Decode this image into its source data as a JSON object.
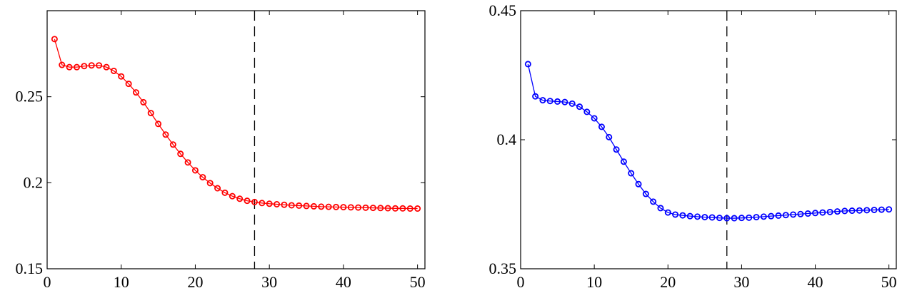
{
  "chart_data": [
    {
      "type": "line",
      "xlim": [
        0,
        51
      ],
      "ylim": [
        0.15,
        0.3
      ],
      "xticks": [
        0,
        10,
        20,
        30,
        40,
        50
      ],
      "xtick_labels": [
        "0",
        "10",
        "20",
        "30",
        "40",
        "50"
      ],
      "yticks": [
        0.15,
        0.2,
        0.25
      ],
      "ytick_labels": [
        "0.15",
        "0.2",
        "0.25"
      ],
      "grid": false,
      "vline_x": 28,
      "series": [
        {
          "color": "#ff0000",
          "marker": "circle",
          "x": [
            1,
            2,
            3,
            4,
            5,
            6,
            7,
            8,
            9,
            10,
            11,
            12,
            13,
            14,
            15,
            16,
            17,
            18,
            19,
            20,
            21,
            22,
            23,
            24,
            25,
            26,
            27,
            28,
            29,
            30,
            31,
            32,
            33,
            34,
            35,
            36,
            37,
            38,
            39,
            40,
            41,
            42,
            43,
            44,
            45,
            46,
            47,
            48,
            49,
            50
          ],
          "values": [
            0.2835,
            0.2685,
            0.2672,
            0.2672,
            0.2678,
            0.2682,
            0.2682,
            0.2672,
            0.265,
            0.2618,
            0.2575,
            0.2525,
            0.2468,
            0.2405,
            0.2342,
            0.228,
            0.2222,
            0.2168,
            0.2118,
            0.2072,
            0.2032,
            0.1998,
            0.1968,
            0.1942,
            0.1922,
            0.1907,
            0.1895,
            0.1888,
            0.1882,
            0.1878,
            0.1875,
            0.1872,
            0.1869,
            0.1867,
            0.1865,
            0.1863,
            0.1861,
            0.186,
            0.1859,
            0.1858,
            0.1857,
            0.1856,
            0.1855,
            0.1854,
            0.1853,
            0.1852,
            0.1851,
            0.1851,
            0.185,
            0.185
          ]
        }
      ]
    },
    {
      "type": "line",
      "xlim": [
        0,
        51
      ],
      "ylim": [
        0.35,
        0.45
      ],
      "xticks": [
        0,
        10,
        20,
        30,
        40,
        50
      ],
      "xtick_labels": [
        "0",
        "10",
        "20",
        "30",
        "40",
        "50"
      ],
      "yticks": [
        0.35,
        0.4,
        0.45
      ],
      "ytick_labels": [
        "0.35",
        "0.4",
        "0.45"
      ],
      "grid": false,
      "vline_x": 28,
      "series": [
        {
          "color": "#0000ff",
          "marker": "circle",
          "x": [
            1,
            2,
            3,
            4,
            5,
            6,
            7,
            8,
            9,
            10,
            11,
            12,
            13,
            14,
            15,
            16,
            17,
            18,
            19,
            20,
            21,
            22,
            23,
            24,
            25,
            26,
            27,
            28,
            29,
            30,
            31,
            32,
            33,
            34,
            35,
            36,
            37,
            38,
            39,
            40,
            41,
            42,
            43,
            44,
            45,
            46,
            47,
            48,
            49,
            50
          ],
          "values": [
            0.4293,
            0.4168,
            0.4153,
            0.415,
            0.4148,
            0.4146,
            0.414,
            0.4128,
            0.4108,
            0.4083,
            0.405,
            0.401,
            0.3962,
            0.3915,
            0.387,
            0.3828,
            0.379,
            0.376,
            0.3735,
            0.3718,
            0.371,
            0.3707,
            0.3704,
            0.3702,
            0.37,
            0.3699,
            0.3697,
            0.3696,
            0.3696,
            0.3697,
            0.3698,
            0.37,
            0.3702,
            0.3704,
            0.3706,
            0.3708,
            0.371,
            0.3712,
            0.3714,
            0.3716,
            0.3718,
            0.372,
            0.3722,
            0.3724,
            0.3725,
            0.3726,
            0.3727,
            0.3728,
            0.3729,
            0.373
          ]
        }
      ]
    }
  ]
}
